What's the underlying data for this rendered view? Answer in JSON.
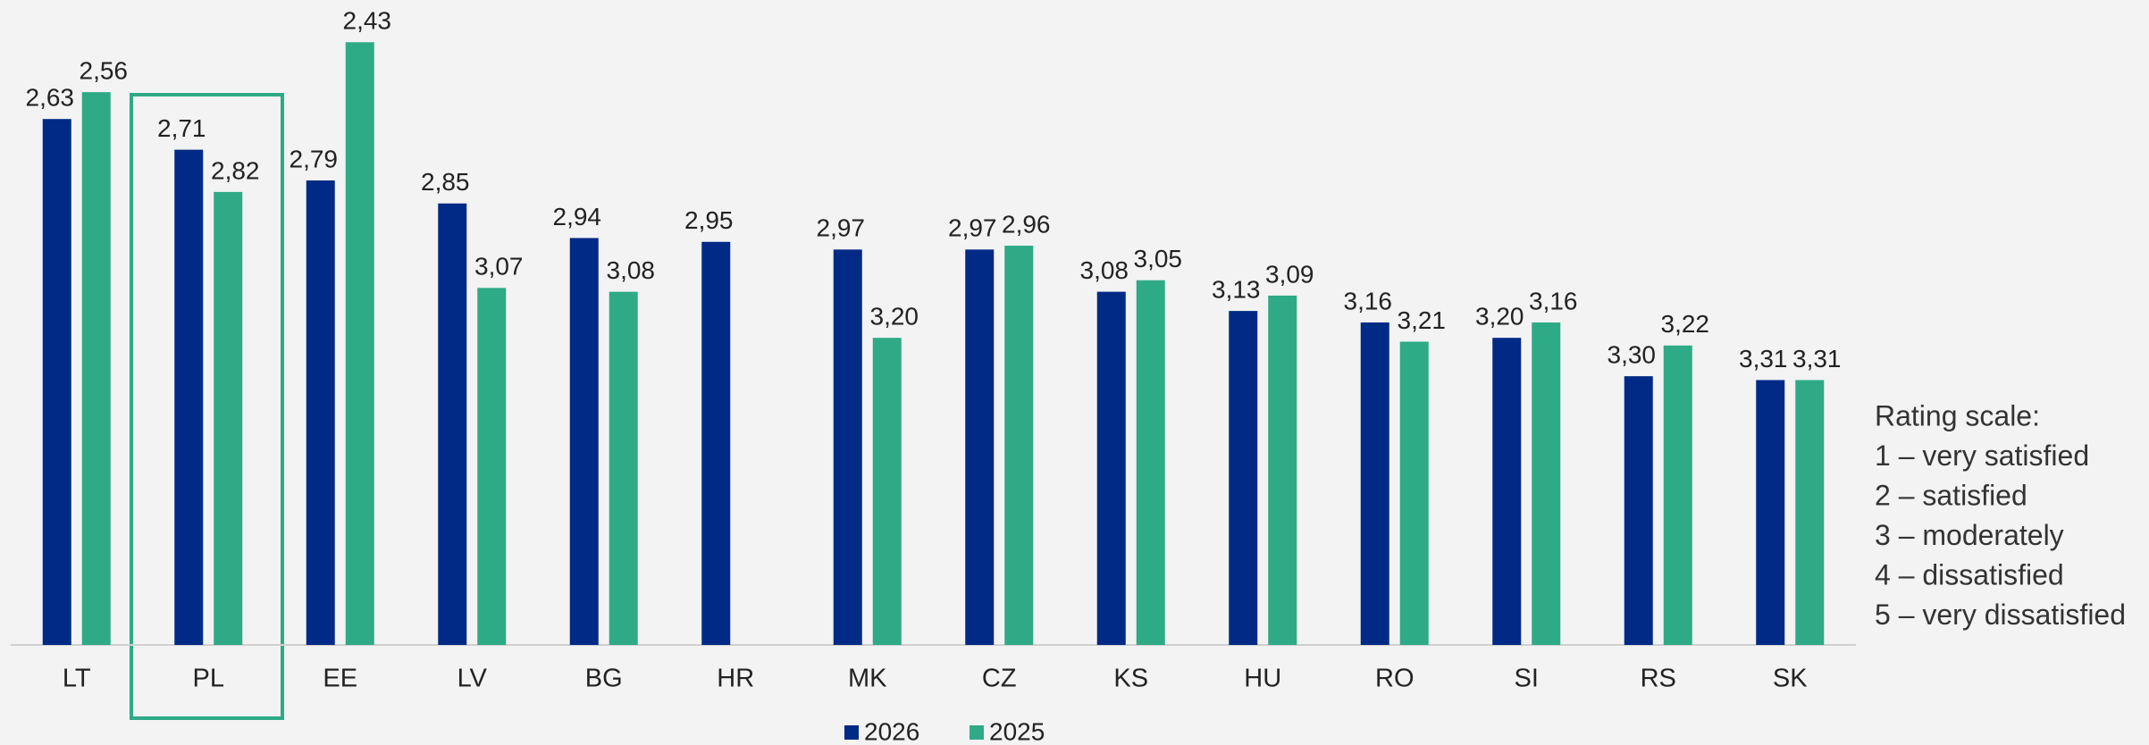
{
  "chart_data": {
    "type": "bar",
    "categories": [
      "LT",
      "PL",
      "EE",
      "LV",
      "BG",
      "HR",
      "MK",
      "CZ",
      "KS",
      "HU",
      "RO",
      "SI",
      "RS",
      "SK"
    ],
    "series": [
      {
        "name": "2026",
        "color": "#002a86",
        "values": [
          2.63,
          2.71,
          2.79,
          2.85,
          2.94,
          2.95,
          2.97,
          2.97,
          3.08,
          3.13,
          3.16,
          3.2,
          3.3,
          3.31
        ],
        "value_labels": [
          "2,63",
          "2,71",
          "2,79",
          "2,85",
          "2,94",
          "2,95",
          "2,97",
          "2,97",
          "3,08",
          "3,13",
          "3,16",
          "3,20",
          "3,30",
          "3,31"
        ]
      },
      {
        "name": "2025",
        "color": "#2eaa86",
        "values": [
          2.56,
          2.82,
          2.43,
          3.07,
          3.08,
          null,
          3.2,
          2.96,
          3.05,
          3.09,
          3.21,
          3.16,
          3.22,
          3.31
        ],
        "value_labels": [
          "2,56",
          "2,82",
          "2,43",
          "3,07",
          "3,08",
          null,
          "3,20",
          "2,96",
          "3,05",
          "3,09",
          "3,21",
          "3,16",
          "3,22",
          "3,31"
        ]
      }
    ],
    "ylim": [
      4,
      2.32
    ],
    "legend": "bottom",
    "note": [
      "Rating scale:",
      "1 – very satisfied",
      "2 – satisfied",
      "3 – moderately",
      "4 – dissatisfied",
      "5 – very dissatisfied"
    ]
  }
}
